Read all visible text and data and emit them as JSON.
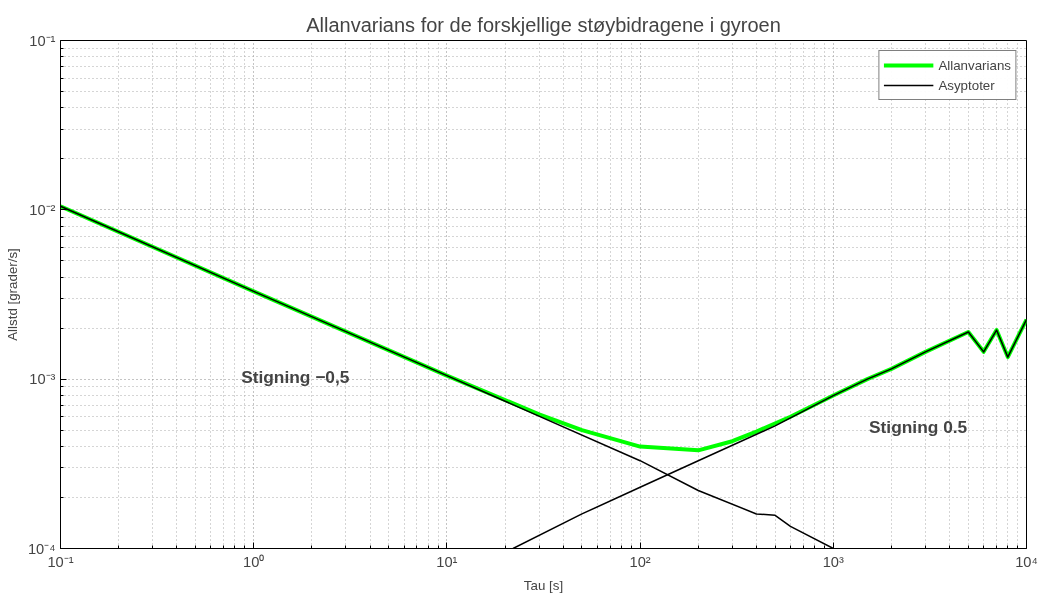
{
  "chart_data": {
    "type": "line",
    "title": "Allanvarians for de forskjellige støybidragene i gyroen",
    "xlabel": "Tau [s]",
    "ylabel": "Allstd [grader/s]",
    "log": "xy",
    "grid": true,
    "legend": "top right",
    "line_style": "solid",
    "marker": "none",
    "xlim": [
      0.1,
      10000
    ],
    "ylim": [
      0.0001,
      0.1
    ],
    "xticks": [
      {
        "value": 0.1,
        "label": "10⁻¹"
      },
      {
        "value": 1,
        "label": "10⁰"
      },
      {
        "value": 10,
        "label": "10¹"
      },
      {
        "value": 100,
        "label": "10²"
      },
      {
        "value": 1000,
        "label": "10³"
      },
      {
        "value": 10000,
        "label": "10⁴"
      }
    ],
    "yticks": [
      {
        "value": 0.0001,
        "label": "10⁻⁴"
      },
      {
        "value": 0.001,
        "label": "10⁻³"
      },
      {
        "value": 0.01,
        "label": "10⁻²"
      },
      {
        "value": 0.1,
        "label": "10⁻¹"
      }
    ],
    "series": [
      {
        "name": "Allanvarians",
        "color": "#00ff00",
        "x": [
          0.1,
          1,
          10,
          30,
          50,
          100,
          200,
          300,
          400,
          600,
          1000,
          1500,
          2000,
          3000,
          5000,
          6000,
          7000,
          8000,
          10000
        ],
        "values": [
          0.0105,
          0.0033,
          0.00105,
          0.00062,
          0.0005,
          0.0004,
          0.00038,
          0.00043,
          0.00049,
          0.0006,
          0.0008,
          0.001,
          0.00115,
          0.00145,
          0.0019,
          0.00145,
          0.00195,
          0.00135,
          0.00225
        ]
      },
      {
        "name": "Asyptoter",
        "color": "#000000",
        "x": [
          0.1,
          1,
          10,
          100,
          200,
          400,
          500,
          600,
          1000
        ],
        "values": [
          0.0105,
          0.0033,
          0.00105,
          0.00033,
          0.00022,
          0.00016,
          0.000157,
          0.000135,
          0.0001
        ]
      },
      {
        "color": "#000000",
        "x": [
          22,
          50,
          100,
          200,
          500,
          1000,
          1500,
          2000,
          3000,
          5000,
          6000,
          7000,
          8000,
          10000
        ],
        "values": [
          0.0001,
          0.00016,
          0.00023,
          0.00033,
          0.00053,
          0.0008,
          0.001,
          0.00115,
          0.00145,
          0.0019,
          0.00145,
          0.00195,
          0.00135,
          0.00225
        ]
      }
    ],
    "annotations": [
      "Stigning −0,5",
      "Stigning 0.5"
    ]
  }
}
